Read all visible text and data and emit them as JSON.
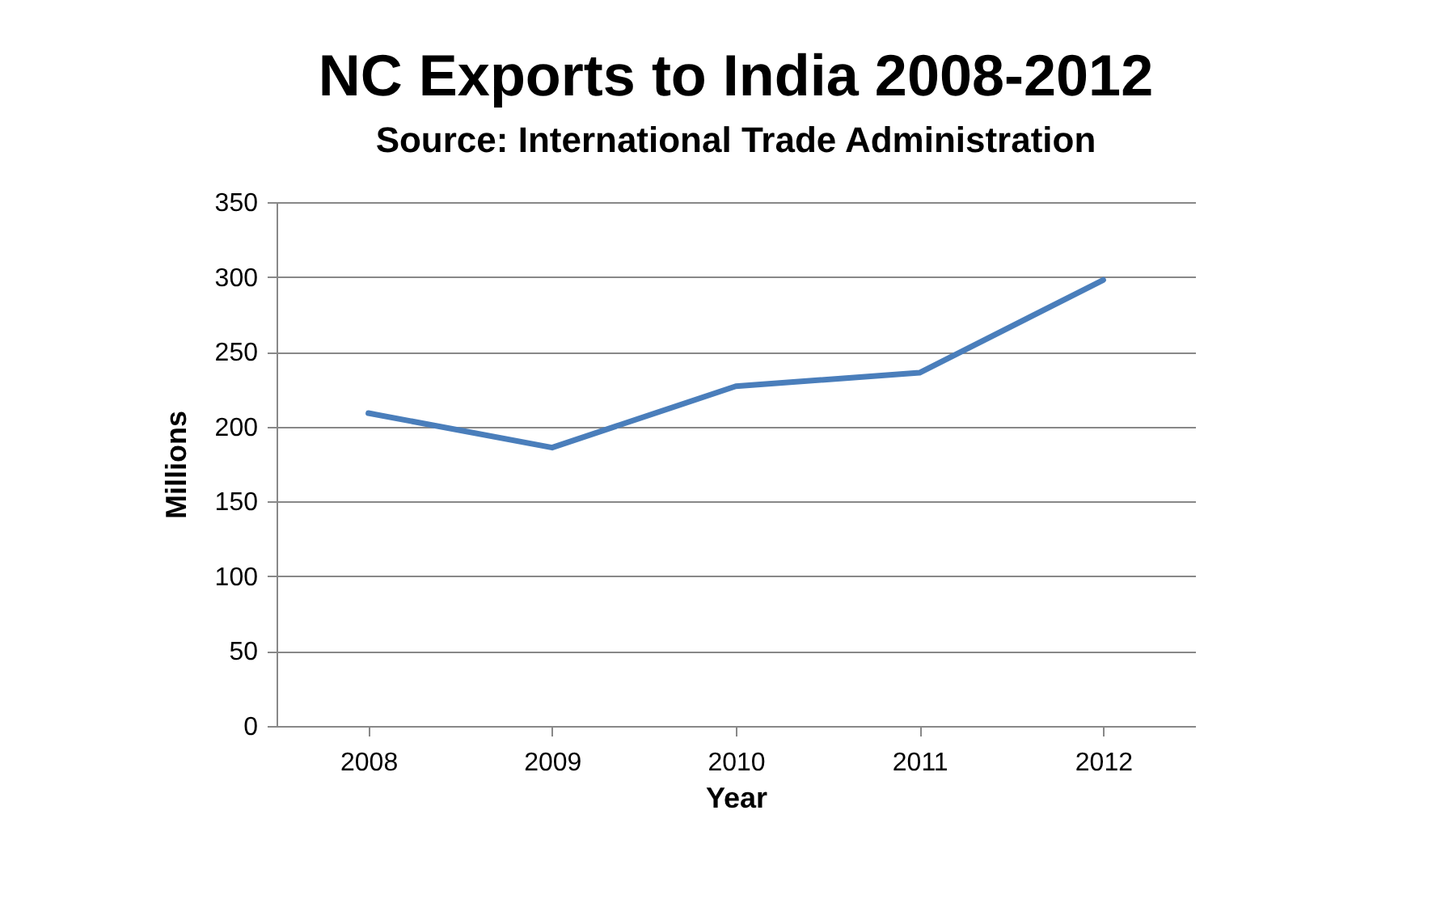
{
  "chart_data": {
    "type": "line",
    "title": "NC Exports to India 2008-2012",
    "subtitle": "Source: International Trade Administration",
    "xlabel": "Year",
    "ylabel": "Millions",
    "categories": [
      "2008",
      "2009",
      "2010",
      "2011",
      "2012"
    ],
    "series": [
      {
        "color": "#4a7ebb",
        "values": [
          209,
          186,
          227,
          236,
          298
        ]
      }
    ],
    "ylim": [
      0,
      350
    ],
    "yticks": [
      0,
      50,
      100,
      150,
      200,
      250,
      300,
      350
    ],
    "grid": "y",
    "marker": "none",
    "line_style": "solid"
  }
}
